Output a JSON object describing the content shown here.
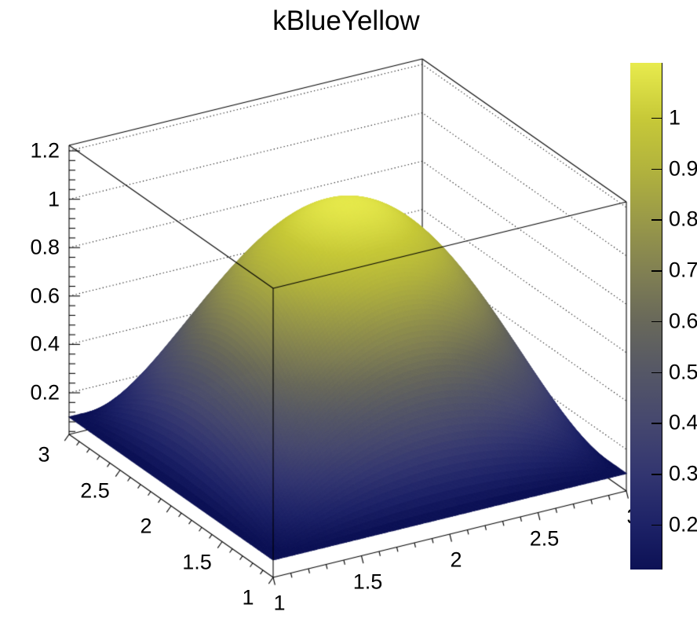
{
  "chart_data": {
    "type": "surface3d",
    "title": "kBlueYellow",
    "palette_name": "kBlueYellow",
    "function": "f(x,y) = 0.1 + (1-(x-2)^2)*(1-(y-2)^2)",
    "x_range": [
      1,
      3
    ],
    "y_range": [
      1,
      3
    ],
    "z_content_range": [
      0.112,
      1.108
    ],
    "z_axis": {
      "ticks": [
        0.2,
        0.4,
        0.6,
        0.8,
        1,
        1.2
      ],
      "tick_labels": [
        "0.2",
        "0.4",
        "0.6",
        "0.8",
        "1",
        "1.2"
      ],
      "range": [
        0.028,
        1.223
      ],
      "minor_step": 0.04
    },
    "x_axis": {
      "ticks": [
        1,
        1.5,
        2,
        2.5,
        3
      ],
      "tick_labels": [
        "1",
        "1.5",
        "2",
        "2.5",
        "3"
      ],
      "minor_step": 0.1
    },
    "y_axis": {
      "ticks": [
        1,
        1.5,
        2,
        2.5,
        3
      ],
      "tick_labels": [
        "1",
        "1.5",
        "2",
        "2.5",
        "3"
      ],
      "minor_step": 0.1
    },
    "color_scale": {
      "min": 0.112,
      "max": 1.108,
      "ticks": [
        0.2,
        0.3,
        0.4,
        0.5,
        0.6,
        0.7,
        0.8,
        0.9,
        1
      ],
      "tick_labels": [
        "0.2",
        "0.3",
        "0.4",
        "0.5",
        "0.6",
        "0.7",
        "0.8",
        "0.9",
        "1"
      ],
      "stops": [
        {
          "t": 0.0,
          "color": "#0c1155"
        },
        {
          "t": 0.088,
          "color": "#1d2267"
        },
        {
          "t": 0.186,
          "color": "#323570"
        },
        {
          "t": 0.287,
          "color": "#45476f"
        },
        {
          "t": 0.391,
          "color": "#555766"
        },
        {
          "t": 0.493,
          "color": "#69695a"
        },
        {
          "t": 0.592,
          "color": "#828152"
        },
        {
          "t": 0.693,
          "color": "#9a9a48"
        },
        {
          "t": 0.791,
          "color": "#b2b33d"
        },
        {
          "t": 0.891,
          "color": "#c7c938"
        },
        {
          "t": 1.0,
          "color": "#e8eb4d"
        }
      ]
    },
    "sample_grid": {
      "x": [
        1,
        1.5,
        2,
        2.5,
        3
      ],
      "y": [
        1,
        1.5,
        2,
        2.5,
        3
      ],
      "z": [
        [
          0.1,
          0.1,
          0.1,
          0.1,
          0.1
        ],
        [
          0.1,
          0.6625,
          0.85,
          0.6625,
          0.1
        ],
        [
          0.1,
          0.85,
          1.1,
          0.85,
          0.1
        ],
        [
          0.1,
          0.6625,
          0.85,
          0.6625,
          0.1
        ],
        [
          0.1,
          0.1,
          0.1,
          0.1,
          0.1
        ]
      ]
    },
    "frame_color": "#000000",
    "background_color": "#ffffff"
  }
}
